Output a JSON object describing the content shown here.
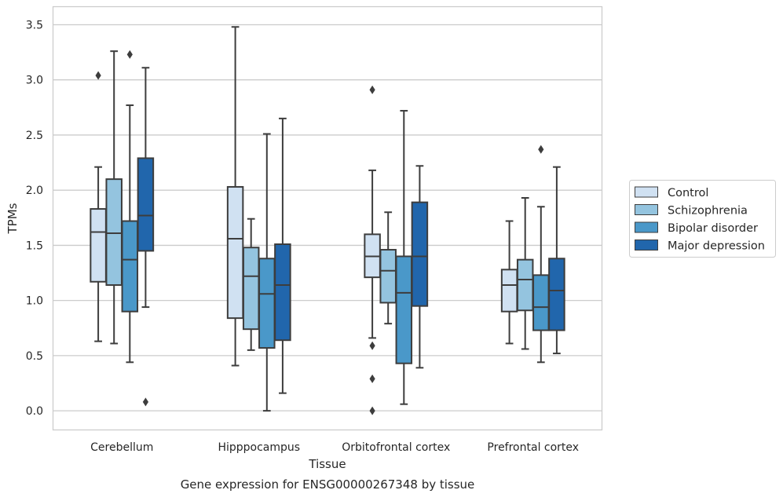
{
  "caption": "Gene expression for ENSG00000267348 by tissue",
  "chart_data": {
    "type": "box",
    "xlabel": "Tissue",
    "ylabel": "TPMs",
    "ylim": [
      -0.17,
      3.66
    ],
    "yticks": [
      "0.0",
      "0.5",
      "1.0",
      "1.5",
      "2.0",
      "2.5",
      "3.0",
      "3.5"
    ],
    "grid": "horizontal",
    "legend_position": "right",
    "categories": [
      "Cerebellum",
      "Hipppocampus",
      "Orbitofrontal cortex",
      "Prefrontal cortex"
    ],
    "series": [
      {
        "name": "Control",
        "color": "#d0e1f2",
        "boxes": [
          {
            "whislo": 0.63,
            "q1": 1.17,
            "med": 1.62,
            "q3": 1.83,
            "whishi": 2.21,
            "fliers": [
              3.04
            ]
          },
          {
            "whislo": 0.41,
            "q1": 0.84,
            "med": 1.56,
            "q3": 2.03,
            "whishi": 3.48,
            "fliers": []
          },
          {
            "whislo": 0.66,
            "q1": 1.21,
            "med": 1.4,
            "q3": 1.6,
            "whishi": 2.18,
            "fliers": [
              0.59,
              0.29,
              0.0,
              2.91
            ]
          },
          {
            "whislo": 0.61,
            "q1": 0.9,
            "med": 1.14,
            "q3": 1.28,
            "whishi": 1.72,
            "fliers": []
          }
        ]
      },
      {
        "name": "Schizophrenia",
        "color": "#94c4df",
        "boxes": [
          {
            "whislo": 0.61,
            "q1": 1.14,
            "med": 1.61,
            "q3": 2.1,
            "whishi": 3.26,
            "fliers": []
          },
          {
            "whislo": 0.55,
            "q1": 0.74,
            "med": 1.22,
            "q3": 1.48,
            "whishi": 1.74,
            "fliers": []
          },
          {
            "whislo": 0.79,
            "q1": 0.98,
            "med": 1.27,
            "q3": 1.46,
            "whishi": 1.8,
            "fliers": []
          },
          {
            "whislo": 0.56,
            "q1": 0.91,
            "med": 1.19,
            "q3": 1.37,
            "whishi": 1.93,
            "fliers": []
          }
        ]
      },
      {
        "name": "Bipolar disorder",
        "color": "#4a98c9",
        "boxes": [
          {
            "whislo": 0.44,
            "q1": 0.9,
            "med": 1.37,
            "q3": 1.72,
            "whishi": 2.77,
            "fliers": [
              3.23
            ]
          },
          {
            "whislo": 0.0,
            "q1": 0.57,
            "med": 1.06,
            "q3": 1.38,
            "whishi": 2.51,
            "fliers": []
          },
          {
            "whislo": 0.06,
            "q1": 0.43,
            "med": 1.07,
            "q3": 1.4,
            "whishi": 2.72,
            "fliers": []
          },
          {
            "whislo": 0.44,
            "q1": 0.73,
            "med": 0.94,
            "q3": 1.23,
            "whishi": 1.85,
            "fliers": [
              2.37
            ]
          }
        ]
      },
      {
        "name": "Major depression",
        "color": "#2166ac",
        "boxes": [
          {
            "whislo": 0.94,
            "q1": 1.45,
            "med": 1.77,
            "q3": 2.29,
            "whishi": 3.11,
            "fliers": [
              0.08
            ]
          },
          {
            "whislo": 0.16,
            "q1": 0.64,
            "med": 1.14,
            "q3": 1.51,
            "whishi": 2.65,
            "fliers": []
          },
          {
            "whislo": 0.39,
            "q1": 0.95,
            "med": 1.4,
            "q3": 1.89,
            "whishi": 2.22,
            "fliers": []
          },
          {
            "whislo": 0.52,
            "q1": 0.73,
            "med": 1.09,
            "q3": 1.38,
            "whishi": 2.21,
            "fliers": []
          }
        ]
      }
    ]
  }
}
